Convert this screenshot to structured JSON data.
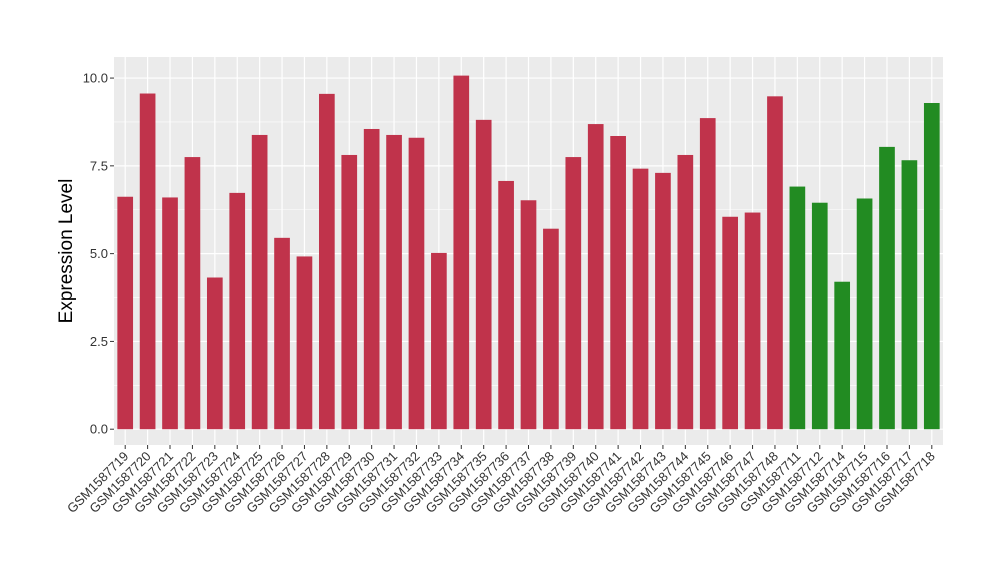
{
  "chart_data": {
    "type": "bar",
    "title": "",
    "xlabel": "",
    "ylabel": "Expression Level",
    "ylim": [
      -0.45,
      10.6
    ],
    "yticks": [
      0.0,
      2.5,
      5.0,
      7.5,
      10.0
    ],
    "ytick_labels": [
      "0.0",
      "2.5",
      "5.0",
      "7.5",
      "10.0"
    ],
    "grid": true,
    "legend": "none",
    "categories": [
      "GSM1587719",
      "GSM1587720",
      "GSM1587721",
      "GSM1587722",
      "GSM1587723",
      "GSM1587724",
      "GSM1587725",
      "GSM1587726",
      "GSM1587727",
      "GSM1587728",
      "GSM1587729",
      "GSM1587730",
      "GSM1587731",
      "GSM1587732",
      "GSM1587733",
      "GSM1587734",
      "GSM1587735",
      "GSM1587736",
      "GSM1587737",
      "GSM1587738",
      "GSM1587739",
      "GSM1587740",
      "GSM1587741",
      "GSM1587742",
      "GSM1587743",
      "GSM1587744",
      "GSM1587745",
      "GSM1587746",
      "GSM1587747",
      "GSM1587748",
      "GSM1587711",
      "GSM1587712",
      "GSM1587714",
      "GSM1587715",
      "GSM1587716",
      "GSM1587717",
      "GSM1587718"
    ],
    "values": [
      6.62,
      9.56,
      6.6,
      7.75,
      4.32,
      6.73,
      8.38,
      5.45,
      4.92,
      9.55,
      7.81,
      8.55,
      8.38,
      8.3,
      5.02,
      10.07,
      8.81,
      7.07,
      6.52,
      5.71,
      7.75,
      8.69,
      8.35,
      7.42,
      7.3,
      7.81,
      8.86,
      6.05,
      6.17,
      9.48,
      6.91,
      6.45,
      4.2,
      6.57,
      8.04,
      7.66,
      9.29
    ],
    "group_of_bar": [
      "a",
      "a",
      "a",
      "a",
      "a",
      "a",
      "a",
      "a",
      "a",
      "a",
      "a",
      "a",
      "a",
      "a",
      "a",
      "a",
      "a",
      "a",
      "a",
      "a",
      "a",
      "a",
      "a",
      "a",
      "a",
      "a",
      "a",
      "a",
      "a",
      "a",
      "b",
      "b",
      "b",
      "b",
      "b",
      "b",
      "b"
    ],
    "colors": {
      "a": "#c0334b",
      "b": "#228b22"
    },
    "panel_bg": "#ebebeb",
    "grid_color": "#ffffff"
  }
}
